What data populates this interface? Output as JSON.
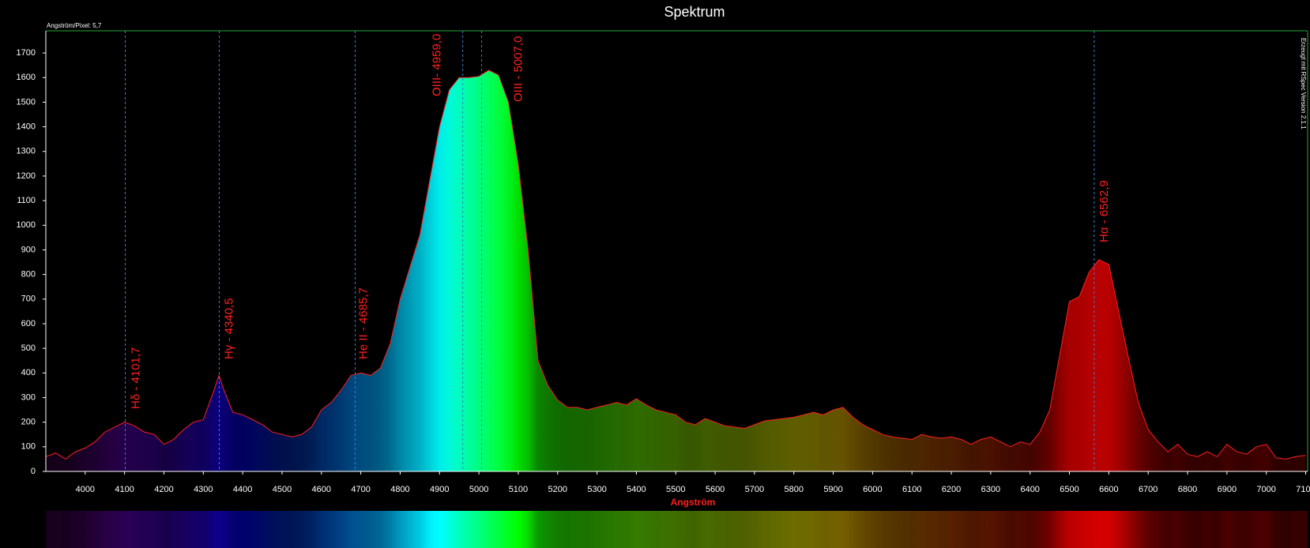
{
  "chart_data": {
    "type": "area",
    "title": "Spektrum",
    "subtitle": "Angström/Pixel: 5,7",
    "credit": "Erzeugt mit RSpec Version 2.1.1",
    "x_label": "Angström",
    "color": "#ff2020",
    "x": [
      3900,
      3925,
      3950,
      3975,
      4000,
      4025,
      4050,
      4075,
      4100,
      4125,
      4150,
      4175,
      4200,
      4225,
      4250,
      4275,
      4300,
      4325,
      4340,
      4350,
      4375,
      4400,
      4425,
      4450,
      4475,
      4500,
      4525,
      4550,
      4575,
      4600,
      4625,
      4650,
      4675,
      4700,
      4725,
      4750,
      4775,
      4800,
      4825,
      4850,
      4875,
      4900,
      4925,
      4950,
      4975,
      5000,
      5025,
      5050,
      5075,
      5100,
      5125,
      5150,
      5175,
      5200,
      5225,
      5250,
      5275,
      5300,
      5325,
      5350,
      5375,
      5400,
      5425,
      5450,
      5475,
      5500,
      5525,
      5550,
      5575,
      5600,
      5625,
      5650,
      5675,
      5700,
      5725,
      5750,
      5775,
      5800,
      5825,
      5850,
      5875,
      5900,
      5925,
      5950,
      5975,
      6000,
      6025,
      6050,
      6075,
      6100,
      6125,
      6150,
      6175,
      6200,
      6225,
      6250,
      6275,
      6300,
      6325,
      6350,
      6375,
      6400,
      6425,
      6450,
      6475,
      6500,
      6525,
      6550,
      6575,
      6600,
      6625,
      6650,
      6675,
      6700,
      6725,
      6750,
      6775,
      6800,
      6825,
      6850,
      6875,
      6900,
      6925,
      6950,
      6975,
      7000,
      7025,
      7050,
      7075,
      7100
    ],
    "values": [
      60,
      75,
      50,
      80,
      95,
      120,
      160,
      180,
      200,
      185,
      160,
      150,
      110,
      130,
      170,
      200,
      210,
      320,
      390,
      340,
      240,
      230,
      210,
      190,
      160,
      150,
      140,
      150,
      180,
      250,
      280,
      330,
      390,
      400,
      390,
      420,
      520,
      700,
      830,
      960,
      1180,
      1400,
      1550,
      1600,
      1600,
      1605,
      1630,
      1610,
      1500,
      1250,
      900,
      450,
      350,
      290,
      260,
      260,
      250,
      260,
      270,
      280,
      270,
      295,
      270,
      250,
      240,
      230,
      200,
      190,
      215,
      200,
      185,
      180,
      175,
      190,
      205,
      210,
      215,
      220,
      230,
      240,
      230,
      250,
      260,
      220,
      190,
      170,
      150,
      140,
      135,
      130,
      150,
      140,
      135,
      140,
      130,
      110,
      130,
      140,
      120,
      100,
      120,
      110,
      160,
      250,
      470,
      690,
      710,
      810,
      860,
      840,
      650,
      460,
      280,
      170,
      120,
      80,
      110,
      70,
      60,
      80,
      60,
      110,
      80,
      70,
      100,
      110,
      55,
      50,
      60,
      65
    ],
    "annotations": [
      {
        "label": "Hδ - 4101,7",
        "value": 4101.7
      },
      {
        "label": "Hγ - 4340,5",
        "value": 4340.5
      },
      {
        "label": "He II - 4685,7",
        "value": 4685.7
      },
      {
        "label": "OIII- 4959,0",
        "value": 4959.0
      },
      {
        "label": "OIII - 5007,0",
        "value": 5007.0
      },
      {
        "label": "Hα - 6562,9",
        "value": 6562.9
      }
    ],
    "xlim": [
      3900,
      7105
    ],
    "ylim": [
      0,
      1790
    ],
    "xticks": [
      4000,
      4100,
      4200,
      4300,
      4400,
      4500,
      4600,
      4700,
      4800,
      4900,
      5000,
      5100,
      5200,
      5300,
      5400,
      5500,
      5600,
      5700,
      5800,
      5900,
      6000,
      6100,
      6200,
      6300,
      6400,
      6500,
      6600,
      6700,
      6800,
      6900,
      7000,
      7100
    ],
    "yticks": [
      0,
      100,
      200,
      300,
      400,
      500,
      600,
      700,
      800,
      900,
      1000,
      1100,
      1200,
      1300,
      1400,
      1500,
      1600,
      1700
    ]
  }
}
